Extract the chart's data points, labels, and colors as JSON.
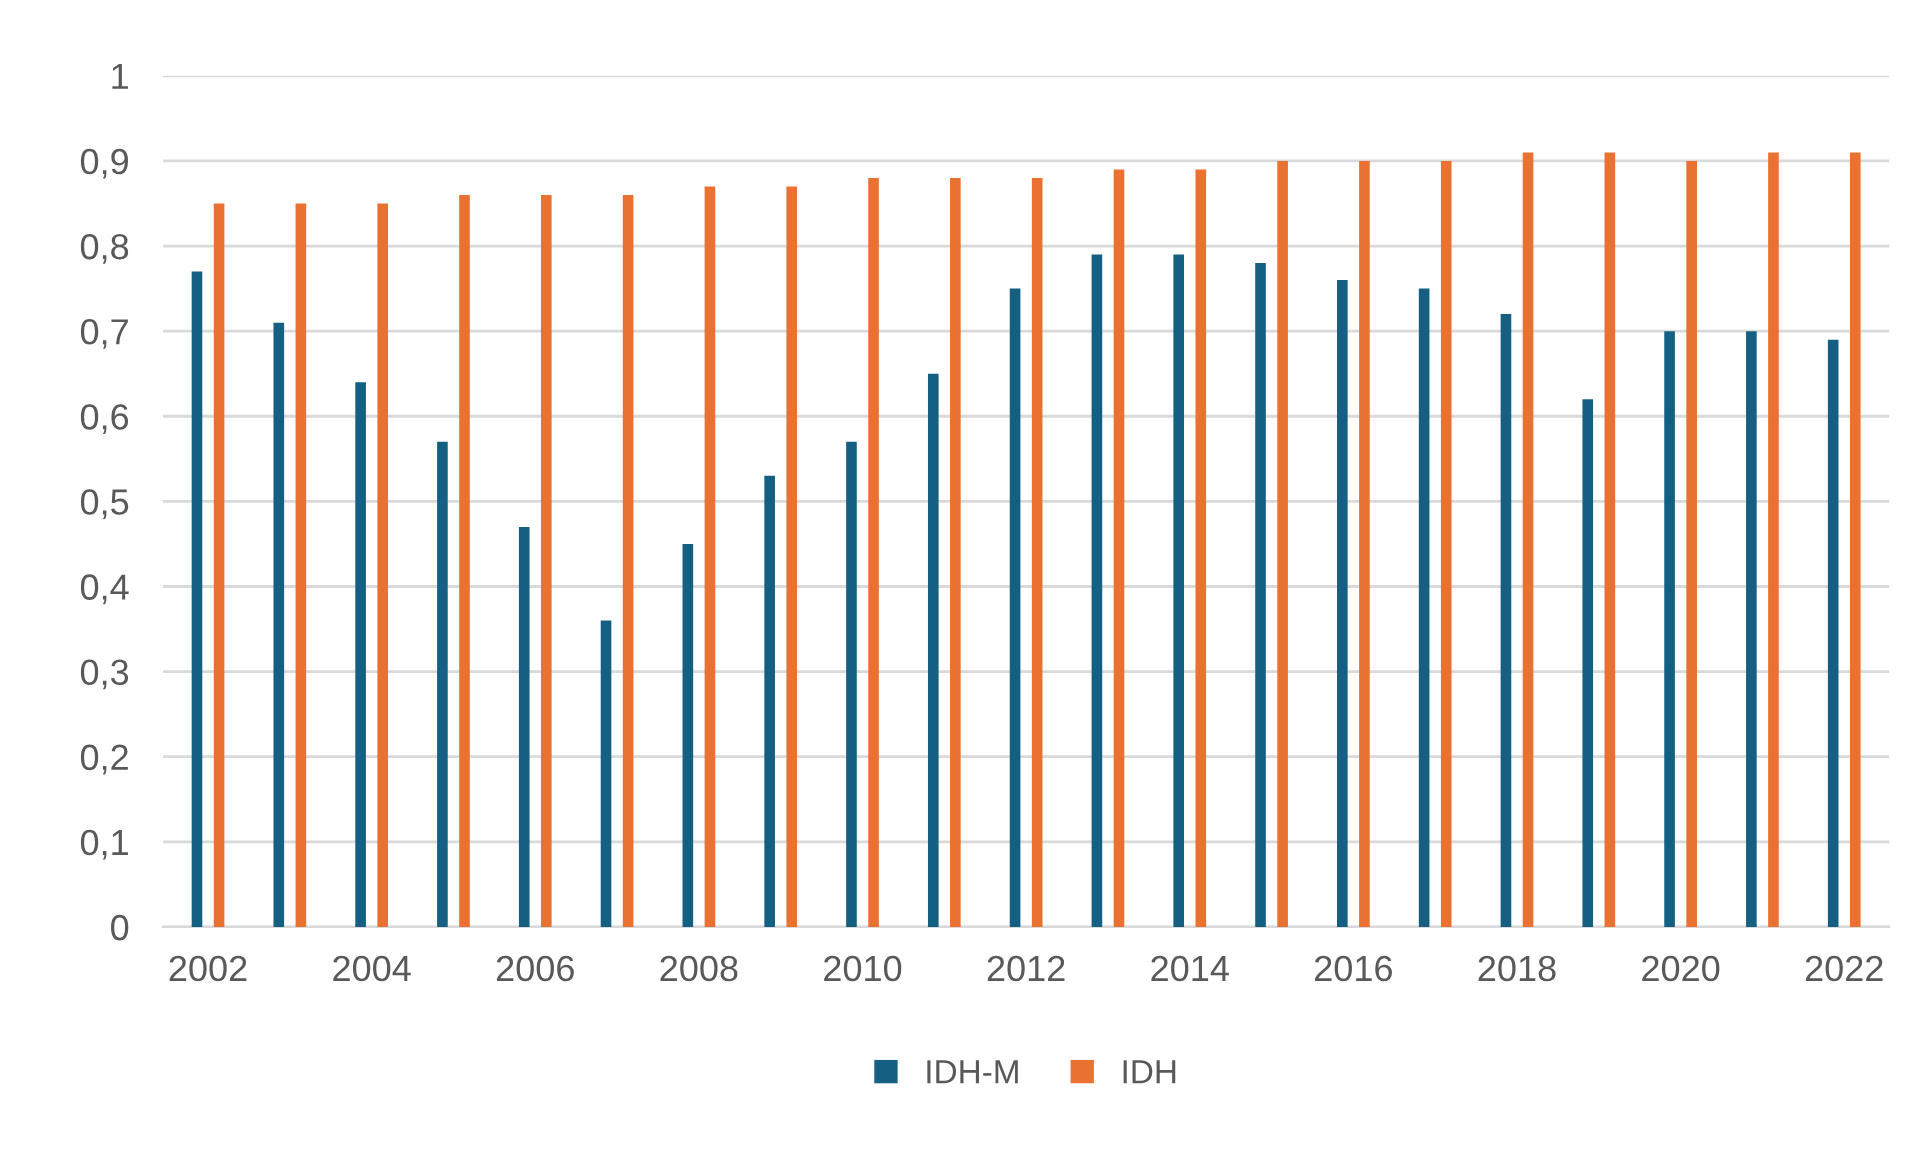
{
  "chart_data": {
    "type": "bar",
    "categories": [
      "2002",
      null,
      "2004",
      null,
      "2006",
      null,
      "2008",
      null,
      "2010",
      null,
      "2012",
      null,
      "2014",
      null,
      "2016",
      null,
      "2018",
      null,
      "2020",
      null,
      "2022"
    ],
    "series": [
      {
        "name": "IDH-M",
        "color": "#156082",
        "values": [
          0.77,
          0.71,
          0.64,
          0.57,
          0.47,
          0.36,
          0.45,
          0.53,
          0.57,
          0.65,
          0.75,
          0.79,
          0.79,
          0.78,
          0.76,
          0.75,
          0.72,
          0.62,
          0.7,
          0.7,
          0.69
        ]
      },
      {
        "name": "IDH",
        "color": "#e97132",
        "values": [
          0.85,
          0.85,
          0.85,
          0.86,
          0.86,
          0.86,
          0.87,
          0.87,
          0.88,
          0.88,
          0.88,
          0.89,
          0.89,
          0.9,
          0.9,
          0.9,
          0.91,
          0.91,
          0.9,
          0.91,
          0.91
        ]
      }
    ],
    "ylim": [
      0,
      1
    ],
    "yticks": [
      {
        "value": 0,
        "label": "0"
      },
      {
        "value": 0.1,
        "label": "0,1"
      },
      {
        "value": 0.2,
        "label": "0,2"
      },
      {
        "value": 0.3,
        "label": "0,3"
      },
      {
        "value": 0.4,
        "label": "0,4"
      },
      {
        "value": 0.5,
        "label": "0,5"
      },
      {
        "value": 0.6,
        "label": "0,6"
      },
      {
        "value": 0.7,
        "label": "0,7"
      },
      {
        "value": 0.8,
        "label": "0,8"
      },
      {
        "value": 0.9,
        "label": "0,9"
      },
      {
        "value": 1,
        "label": "1"
      }
    ],
    "grid": "y",
    "legend": "bottom"
  }
}
